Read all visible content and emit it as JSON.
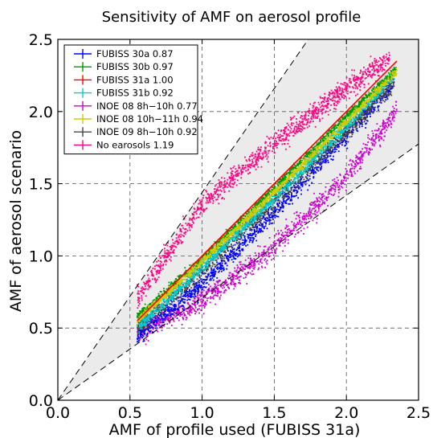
{
  "chart_data": {
    "type": "scatter",
    "title": "Sensitivity of AMF on aerosol profile",
    "xlabel": "AMF of profile used (FUBISS 31a)",
    "ylabel": "AMF of aerosol scenario",
    "xlim": [
      0.0,
      2.5
    ],
    "ylim": [
      0.0,
      2.5
    ],
    "xticks": [
      "0.0",
      "0.5",
      "1.0",
      "1.5",
      "2.0",
      "2.5"
    ],
    "yticks": [
      "0.0",
      "0.5",
      "1.0",
      "1.5",
      "2.0",
      "2.5"
    ],
    "grid": true,
    "legend_position": "top-left",
    "envelope": {
      "description_lines": "dashed reference lines bounding the shaded area",
      "upper_slope": 1.44,
      "lower_slope": 0.71,
      "fill_color": "#ebebeb"
    },
    "series": [
      {
        "name": "FUBISS 30a 0.87",
        "color": "#0000ff",
        "x_range": [
          0.55,
          2.33
        ],
        "center": [
          [
            0.55,
            0.44
          ],
          [
            1.0,
            0.8
          ],
          [
            1.5,
            1.3
          ],
          [
            2.0,
            1.83
          ],
          [
            2.33,
            2.2
          ]
        ],
        "spread": 0.05
      },
      {
        "name": "FUBISS 30b 0.97",
        "color": "#009900",
        "x_range": [
          0.55,
          2.35
        ],
        "center": [
          [
            0.55,
            0.58
          ],
          [
            1.0,
            0.98
          ],
          [
            1.5,
            1.47
          ],
          [
            2.0,
            1.97
          ],
          [
            2.35,
            2.3
          ]
        ],
        "spread": 0.02
      },
      {
        "name": "FUBISS 31a 1.00",
        "color": "#ff0000",
        "x_range": [
          0.55,
          2.35
        ],
        "center": [
          [
            0.55,
            0.55
          ],
          [
            1.0,
            1.0
          ],
          [
            1.5,
            1.5
          ],
          [
            2.0,
            2.0
          ],
          [
            2.35,
            2.35
          ]
        ],
        "spread": 0.0
      },
      {
        "name": "FUBISS 31b 0.92",
        "color": "#00cccc",
        "x_range": [
          0.55,
          2.33
        ],
        "center": [
          [
            0.55,
            0.5
          ],
          [
            1.0,
            0.92
          ],
          [
            1.5,
            1.4
          ],
          [
            2.0,
            1.9
          ],
          [
            2.33,
            2.25
          ]
        ],
        "spread": 0.03
      },
      {
        "name": "INOE 08 8h−10h 0.77",
        "color": "#cc00cc",
        "x_range": [
          0.55,
          2.35
        ],
        "center": [
          [
            0.55,
            0.48
          ],
          [
            1.0,
            0.68
          ],
          [
            1.5,
            1.06
          ],
          [
            2.0,
            1.55
          ],
          [
            2.35,
            2.0
          ]
        ],
        "spread": 0.06
      },
      {
        "name": "INOE 08 10h−11h 0.94",
        "color": "#cccc00",
        "x_range": [
          0.55,
          2.35
        ],
        "center": [
          [
            0.55,
            0.55
          ],
          [
            1.0,
            0.96
          ],
          [
            1.5,
            1.44
          ],
          [
            2.0,
            1.93
          ],
          [
            2.35,
            2.28
          ]
        ],
        "spread": 0.02
      },
      {
        "name": "INOE 09 8h−10h 0.92",
        "color": "#444444",
        "x_range": [
          0.55,
          2.33
        ],
        "center": [
          [
            0.55,
            0.5
          ],
          [
            1.0,
            0.9
          ],
          [
            1.5,
            1.38
          ],
          [
            2.0,
            1.86
          ],
          [
            2.33,
            2.2
          ]
        ],
        "spread": 0.05
      },
      {
        "name": "No earosols 1.19",
        "color": "#ff0080",
        "x_range": [
          0.55,
          2.3
        ],
        "center": [
          [
            0.55,
            0.7
          ],
          [
            1.0,
            1.35
          ],
          [
            1.5,
            1.78
          ],
          [
            2.0,
            2.16
          ],
          [
            2.3,
            2.37
          ]
        ],
        "spread": 0.06
      }
    ]
  }
}
